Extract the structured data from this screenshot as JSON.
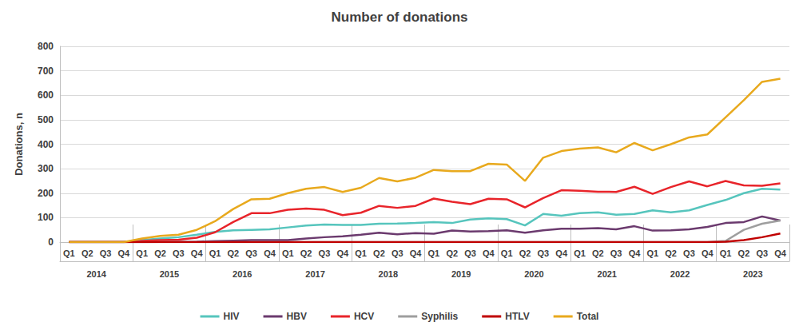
{
  "chart_data": {
    "type": "line",
    "title": "Number of donations",
    "y_label": "Donations, n",
    "categories": [
      "Q1",
      "Q2",
      "Q3",
      "Q4",
      "Q1",
      "Q2",
      "Q3",
      "Q4",
      "Q1",
      "Q2",
      "Q3",
      "Q4",
      "Q1",
      "Q2",
      "Q3",
      "Q4",
      "Q1",
      "Q2",
      "Q3",
      "Q4",
      "Q1",
      "Q2",
      "Q3",
      "Q4",
      "Q1",
      "Q2",
      "Q3",
      "Q4",
      "Q1",
      "Q2",
      "Q3",
      "Q4",
      "Q1",
      "Q2",
      "Q3",
      "Q4",
      "Q1",
      "Q2",
      "Q3",
      "Q4"
    ],
    "years": [
      "2014",
      "2015",
      "2016",
      "2017",
      "2018",
      "2019",
      "2020",
      "2021",
      "2022",
      "2023"
    ],
    "series": [
      {
        "name": "HIV",
        "color": "#56c5bd",
        "values": [
          0,
          0,
          0,
          0,
          8,
          15,
          20,
          30,
          42,
          48,
          50,
          52,
          60,
          68,
          72,
          70,
          70,
          75,
          76,
          78,
          82,
          78,
          92,
          97,
          94,
          68,
          115,
          108,
          118,
          122,
          112,
          115,
          130,
          122,
          130,
          152,
          172,
          200,
          218,
          215
        ]
      },
      {
        "name": "HBV",
        "color": "#6b3a6e",
        "values": [
          0,
          0,
          0,
          0,
          0,
          1,
          1,
          2,
          4,
          6,
          8,
          8,
          8,
          15,
          20,
          24,
          30,
          38,
          32,
          37,
          34,
          47,
          43,
          45,
          48,
          38,
          48,
          55,
          55,
          57,
          52,
          65,
          47,
          48,
          52,
          62,
          78,
          82,
          105,
          88
        ]
      },
      {
        "name": "HCV",
        "color": "#e8242a",
        "values": [
          0,
          0,
          0,
          0,
          5,
          8,
          10,
          18,
          40,
          82,
          118,
          118,
          132,
          137,
          132,
          110,
          120,
          148,
          140,
          148,
          178,
          165,
          155,
          177,
          175,
          142,
          180,
          212,
          210,
          206,
          205,
          226,
          197,
          225,
          248,
          228,
          250,
          232,
          230,
          240
        ]
      },
      {
        "name": "Syphilis",
        "color": "#9e9e9e",
        "values": [
          0,
          0,
          0,
          0,
          0,
          0,
          0,
          0,
          0,
          0,
          0,
          0,
          0,
          0,
          0,
          0,
          0,
          0,
          0,
          0,
          0,
          0,
          0,
          0,
          0,
          0,
          0,
          0,
          0,
          0,
          0,
          0,
          0,
          0,
          0,
          0,
          5,
          50,
          75,
          88
        ]
      },
      {
        "name": "HTLV",
        "color": "#c00000",
        "values": [
          0,
          0,
          0,
          0,
          0,
          0,
          0,
          0,
          0,
          0,
          0,
          0,
          0,
          0,
          0,
          0,
          0,
          0,
          0,
          0,
          0,
          0,
          0,
          0,
          0,
          0,
          0,
          0,
          0,
          0,
          0,
          0,
          0,
          0,
          0,
          0,
          2,
          8,
          20,
          35
        ]
      },
      {
        "name": "Total",
        "color": "#e8a91d",
        "values": [
          0,
          0,
          0,
          0,
          15,
          25,
          30,
          50,
          85,
          135,
          175,
          177,
          200,
          218,
          225,
          205,
          222,
          262,
          248,
          263,
          295,
          290,
          290,
          320,
          317,
          250,
          345,
          372,
          382,
          387,
          367,
          405,
          375,
          400,
          428,
          440,
          510,
          580,
          655,
          668
        ]
      }
    ],
    "ylim": [
      0,
      800
    ],
    "yticks": [
      0,
      100,
      200,
      300,
      400,
      500,
      600,
      700,
      800
    ],
    "grid": true,
    "legend": "bottom"
  }
}
